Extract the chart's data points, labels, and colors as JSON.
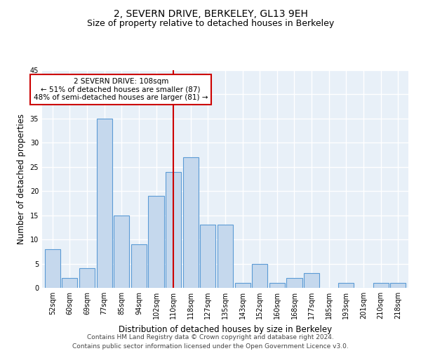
{
  "title": "2, SEVERN DRIVE, BERKELEY, GL13 9EH",
  "subtitle": "Size of property relative to detached houses in Berkeley",
  "xlabel": "Distribution of detached houses by size in Berkeley",
  "ylabel": "Number of detached properties",
  "bar_labels": [
    "52sqm",
    "60sqm",
    "69sqm",
    "77sqm",
    "85sqm",
    "94sqm",
    "102sqm",
    "110sqm",
    "118sqm",
    "127sqm",
    "135sqm",
    "143sqm",
    "152sqm",
    "160sqm",
    "168sqm",
    "177sqm",
    "185sqm",
    "193sqm",
    "201sqm",
    "210sqm",
    "218sqm"
  ],
  "bar_values": [
    8,
    2,
    4,
    35,
    15,
    9,
    19,
    24,
    27,
    13,
    13,
    1,
    5,
    1,
    2,
    3,
    0,
    1,
    0,
    1,
    1
  ],
  "bar_color": "#c5d8ed",
  "bar_edgecolor": "#5b9bd5",
  "ylim": [
    0,
    45
  ],
  "yticks": [
    0,
    5,
    10,
    15,
    20,
    25,
    30,
    35,
    40,
    45
  ],
  "vline_index": 7,
  "vline_color": "#cc0000",
  "annotation_title": "2 SEVERN DRIVE: 108sqm",
  "annotation_line1": "← 51% of detached houses are smaller (87)",
  "annotation_line2": "48% of semi-detached houses are larger (81) →",
  "annotation_box_color": "#ffffff",
  "annotation_box_edgecolor": "#cc0000",
  "footer_line1": "Contains HM Land Registry data © Crown copyright and database right 2024.",
  "footer_line2": "Contains public sector information licensed under the Open Government Licence v3.0.",
  "bg_color": "#e8f0f8",
  "fig_bg_color": "#ffffff",
  "grid_color": "#ffffff",
  "title_fontsize": 10,
  "subtitle_fontsize": 9,
  "tick_fontsize": 7,
  "ylabel_fontsize": 8.5,
  "xlabel_fontsize": 8.5,
  "annotation_fontsize": 7.5,
  "footer_fontsize": 6.5
}
